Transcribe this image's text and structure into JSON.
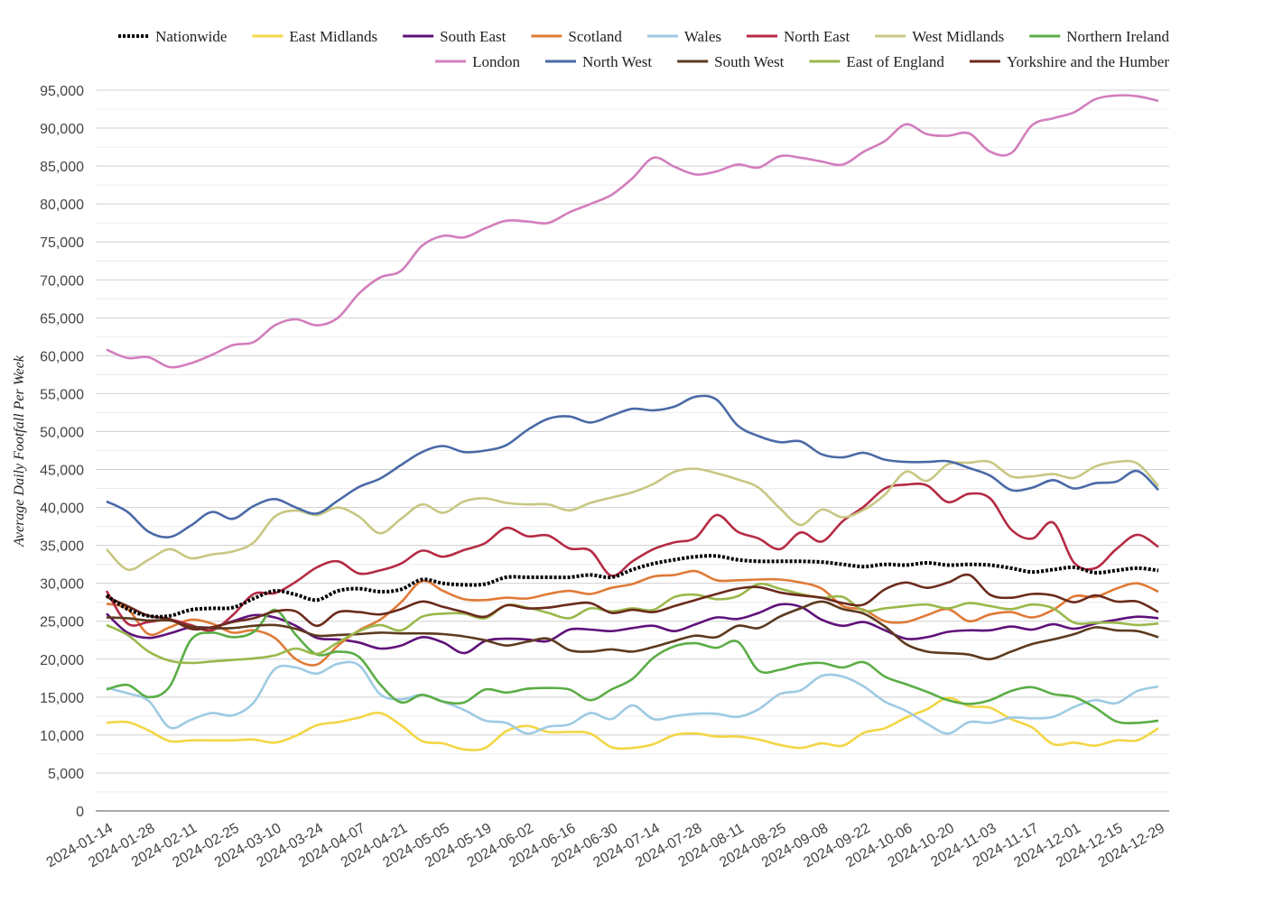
{
  "chart_data": {
    "type": "line",
    "title": "",
    "xlabel": "",
    "ylabel": "Average Daily Footfall Per Week",
    "ylim": [
      0,
      95000
    ],
    "y_ticks": [
      0,
      5000,
      10000,
      15000,
      20000,
      25000,
      30000,
      35000,
      40000,
      45000,
      50000,
      55000,
      60000,
      65000,
      70000,
      75000,
      80000,
      85000,
      90000,
      95000
    ],
    "y_tick_labels": [
      "0",
      "5,000",
      "10,000",
      "15,000",
      "20,000",
      "25,000",
      "30,000",
      "35,000",
      "40,000",
      "45,000",
      "50,000",
      "55,000",
      "60,000",
      "65,000",
      "70,000",
      "75,000",
      "80,000",
      "85,000",
      "90,000",
      "95,000"
    ],
    "x_tick_labels": [
      "2024-01-14",
      "2024-01-28",
      "2024-02-11",
      "2024-02-25",
      "2024-03-10",
      "2024-03-24",
      "2024-04-07",
      "2024-04-21",
      "2024-05-05",
      "2024-05-19",
      "2024-06-02",
      "2024-06-16",
      "2024-06-30",
      "2024-07-14",
      "2024-07-28",
      "2024-08-11",
      "2024-08-25",
      "2024-09-08",
      "2024-09-22",
      "2024-10-06",
      "2024-10-20",
      "2024-11-03",
      "2024-11-17",
      "2024-12-01",
      "2024-12-15",
      "2024-12-29"
    ],
    "grid": true,
    "legend_position": "top",
    "x": [
      "2024-01-14",
      "2024-01-21",
      "2024-01-28",
      "2024-02-04",
      "2024-02-11",
      "2024-02-18",
      "2024-02-25",
      "2024-03-03",
      "2024-03-10",
      "2024-03-17",
      "2024-03-24",
      "2024-03-31",
      "2024-04-07",
      "2024-04-14",
      "2024-04-21",
      "2024-04-28",
      "2024-05-05",
      "2024-05-12",
      "2024-05-19",
      "2024-05-26",
      "2024-06-02",
      "2024-06-09",
      "2024-06-16",
      "2024-06-23",
      "2024-06-30",
      "2024-07-07",
      "2024-07-14",
      "2024-07-21",
      "2024-07-28",
      "2024-08-04",
      "2024-08-11",
      "2024-08-18",
      "2024-08-25",
      "2024-09-01",
      "2024-09-08",
      "2024-09-15",
      "2024-09-22",
      "2024-09-29",
      "2024-10-06",
      "2024-10-13",
      "2024-10-20",
      "2024-10-27",
      "2024-11-03",
      "2024-11-10",
      "2024-11-17",
      "2024-11-24",
      "2024-12-01",
      "2024-12-08",
      "2024-12-15",
      "2024-12-22",
      "2024-12-29"
    ],
    "series": [
      {
        "name": "Nationwide",
        "color": "#000000",
        "dashed": true,
        "values": [
          28400,
          26600,
          25700,
          25700,
          26500,
          26700,
          26800,
          28000,
          29000,
          28500,
          27800,
          29000,
          29300,
          28900,
          29200,
          30500,
          30000,
          29800,
          29900,
          30800,
          30800,
          30800,
          30800,
          31100,
          30800,
          31800,
          32600,
          33100,
          33500,
          33600,
          33100,
          32900,
          32900,
          32900,
          32800,
          32500,
          32200,
          32500,
          32400,
          32700,
          32400,
          32500,
          32400,
          32000,
          31500,
          31800,
          32100,
          31400,
          31700,
          32000,
          31700
        ]
      },
      {
        "name": "East Midlands",
        "color": "#f2d645",
        "values": [
          11600,
          11700,
          10600,
          9200,
          9300,
          9300,
          9300,
          9400,
          9000,
          9900,
          11300,
          11700,
          12300,
          12900,
          11300,
          9200,
          8900,
          8100,
          8300,
          10500,
          11200,
          10400,
          10400,
          10200,
          8400,
          8300,
          8800,
          10000,
          10200,
          9800,
          9800,
          9400,
          8700,
          8300,
          8900,
          8600,
          10300,
          10900,
          12300,
          13400,
          14900,
          13800,
          13600,
          12100,
          11000,
          8800,
          9000,
          8600,
          9300,
          9300,
          10900
        ]
      },
      {
        "name": "South East",
        "color": "#5f117a",
        "values": [
          26000,
          23500,
          22800,
          23400,
          24200,
          24200,
          25000,
          25800,
          25500,
          24400,
          22800,
          22600,
          22200,
          21400,
          21800,
          22900,
          22200,
          20800,
          22400,
          22700,
          22600,
          22400,
          23900,
          23900,
          23700,
          24100,
          24400,
          23700,
          24600,
          25500,
          25300,
          26100,
          27200,
          26900,
          25200,
          24400,
          24900,
          23800,
          22700,
          22900,
          23600,
          23800,
          23800,
          24300,
          23900,
          24600,
          24000,
          24700,
          25200,
          25600,
          25400
        ]
      },
      {
        "name": "Scotland",
        "color": "#e07a37",
        "values": [
          27300,
          26600,
          23300,
          24200,
          25200,
          24700,
          23500,
          23800,
          22800,
          20000,
          19300,
          21800,
          23800,
          25200,
          27500,
          30300,
          29000,
          27900,
          27800,
          28100,
          28000,
          28600,
          29000,
          28600,
          29400,
          29900,
          30900,
          31100,
          31600,
          30400,
          30400,
          30500,
          30500,
          30100,
          29300,
          27000,
          26500,
          25000,
          24900,
          25800,
          26600,
          25000,
          25900,
          26200,
          25500,
          26500,
          28300,
          28200,
          29300,
          30000,
          28900
        ]
      },
      {
        "name": "Wales",
        "color": "#9ecae3",
        "values": [
          16200,
          15500,
          14500,
          11000,
          12000,
          12900,
          12600,
          14300,
          18700,
          18900,
          18100,
          19400,
          19200,
          15400,
          14700,
          15300,
          14400,
          13300,
          11900,
          11600,
          10200,
          11100,
          11400,
          12900,
          12100,
          13900,
          12100,
          12500,
          12800,
          12800,
          12400,
          13400,
          15400,
          15900,
          17800,
          17700,
          16400,
          14400,
          13200,
          11500,
          10200,
          11700,
          11600,
          12300,
          12200,
          12400,
          13700,
          14600,
          14200,
          15800,
          16400
        ]
      },
      {
        "name": "North East",
        "color": "#b52a44",
        "values": [
          29000,
          24700,
          24900,
          25200,
          24500,
          23800,
          25800,
          28600,
          28700,
          30200,
          32100,
          32900,
          31300,
          31700,
          32600,
          34300,
          33500,
          34400,
          35300,
          37300,
          36200,
          36300,
          34600,
          34300,
          31000,
          32900,
          34500,
          35400,
          36000,
          39000,
          36800,
          35900,
          34500,
          36700,
          35500,
          38200,
          40100,
          42500,
          43000,
          42900,
          40700,
          41800,
          41200,
          37100,
          35900,
          38000,
          32700,
          32000,
          34500,
          36400,
          34800
        ]
      },
      {
        "name": "West Midlands",
        "color": "#c8c783",
        "values": [
          34500,
          31800,
          33100,
          34500,
          33300,
          33800,
          34200,
          35400,
          38800,
          39600,
          39000,
          40000,
          38800,
          36600,
          38500,
          40400,
          39300,
          40800,
          41200,
          40600,
          40400,
          40400,
          39600,
          40600,
          41300,
          42000,
          43100,
          44700,
          45100,
          44500,
          43700,
          42600,
          39900,
          37700,
          39700,
          38700,
          39700,
          41700,
          44700,
          43500,
          45700,
          45900,
          46000,
          44100,
          44100,
          44400,
          43900,
          45400,
          46000,
          45800,
          42800
        ]
      },
      {
        "name": "Northern Ireland",
        "color": "#5aad46",
        "values": [
          16000,
          16600,
          15000,
          16400,
          22500,
          23500,
          22900,
          23600,
          26500,
          23200,
          20600,
          21000,
          20300,
          16700,
          14300,
          15300,
          14400,
          14300,
          16000,
          15600,
          16100,
          16200,
          16000,
          14600,
          16000,
          17400,
          20200,
          21700,
          22100,
          21500,
          22300,
          18500,
          18600,
          19300,
          19500,
          18900,
          19600,
          17700,
          16700,
          15700,
          14600,
          14100,
          14600,
          15800,
          16300,
          15400,
          15000,
          13600,
          11800,
          11600,
          11900
        ]
      },
      {
        "name": "London",
        "color": "#d27ebd",
        "values": [
          60800,
          59700,
          59800,
          58500,
          59000,
          60100,
          61400,
          61800,
          64000,
          64800,
          64000,
          65000,
          68200,
          70300,
          71200,
          74500,
          75800,
          75600,
          76800,
          77800,
          77700,
          77500,
          78900,
          80000,
          81200,
          83400,
          86100,
          84900,
          83900,
          84300,
          85200,
          84800,
          86300,
          86100,
          85600,
          85200,
          86900,
          88300,
          90500,
          89200,
          89000,
          89300,
          86900,
          86700,
          90400,
          91300,
          92100,
          93800,
          94300,
          94200,
          93600
        ]
      },
      {
        "name": "North West",
        "color": "#4a6aa7",
        "values": [
          40800,
          39400,
          36800,
          36100,
          37600,
          39400,
          38500,
          40200,
          41100,
          40000,
          39200,
          40900,
          42700,
          43800,
          45600,
          47300,
          48100,
          47300,
          47500,
          48200,
          50200,
          51700,
          52000,
          51200,
          52100,
          53000,
          52800,
          53300,
          54600,
          54200,
          50800,
          49400,
          48600,
          48700,
          47000,
          46600,
          47200,
          46300,
          46000,
          46000,
          46100,
          45200,
          44200,
          42300,
          42600,
          43600,
          42500,
          43200,
          43400,
          44800,
          42300
        ]
      },
      {
        "name": "South West",
        "color": "#5c3a1e",
        "values": [
          25500,
          25400,
          25100,
          25100,
          24300,
          24100,
          24100,
          24400,
          24500,
          24000,
          23100,
          23200,
          23300,
          23500,
          23400,
          23400,
          23300,
          23000,
          22500,
          21800,
          22300,
          22700,
          21200,
          21000,
          21300,
          21000,
          21600,
          22400,
          23100,
          22900,
          24400,
          24100,
          25600,
          26700,
          27600,
          26600,
          26000,
          24300,
          22000,
          21000,
          20800,
          20600,
          20000,
          21000,
          22000,
          22600,
          23300,
          24200,
          23800,
          23700,
          22900
        ]
      },
      {
        "name": "East of England",
        "color": "#99b84a",
        "values": [
          24500,
          23200,
          21000,
          19800,
          19500,
          19700,
          19900,
          20100,
          20500,
          21400,
          20700,
          22200,
          23700,
          24500,
          23800,
          25600,
          26000,
          26000,
          25400,
          27100,
          26800,
          26100,
          25400,
          26700,
          26300,
          26700,
          26500,
          28200,
          28500,
          27900,
          28300,
          29900,
          29300,
          28600,
          28100,
          28200,
          26400,
          26700,
          27000,
          27200,
          26700,
          27400,
          27000,
          26600,
          27200,
          26700,
          24800,
          24800,
          24800,
          24500,
          24700
        ]
      },
      {
        "name": "Yorkshire and the Humber",
        "color": "#6b2a1c",
        "values": [
          28200,
          27000,
          25700,
          25300,
          24000,
          24200,
          24900,
          25400,
          26300,
          26300,
          24400,
          26200,
          26200,
          25900,
          26600,
          27600,
          26900,
          26200,
          25600,
          27100,
          26700,
          26800,
          27200,
          27400,
          26100,
          26500,
          26200,
          27000,
          27800,
          28600,
          29300,
          29500,
          28800,
          28400,
          28100,
          27400,
          27200,
          29200,
          30100,
          29400,
          30100,
          31100,
          28500,
          28100,
          28600,
          28400,
          27500,
          28400,
          27600,
          27600,
          26200
        ]
      }
    ]
  }
}
